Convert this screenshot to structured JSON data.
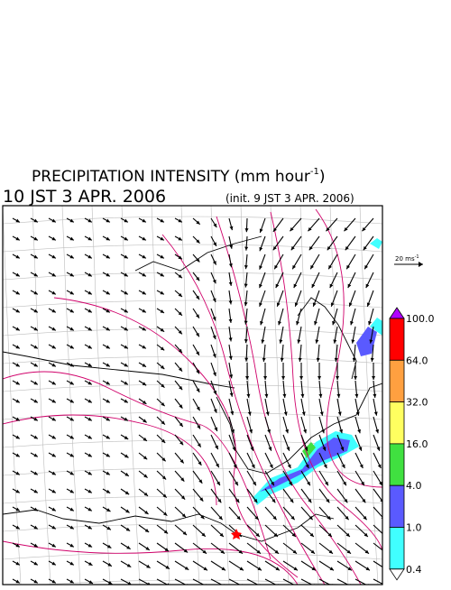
{
  "title": {
    "text": "PRECIPITATION INTENSITY (mm hour",
    "superscript": "-1",
    "suffix": ")"
  },
  "valid_time": "10 JST 3 APR. 2006",
  "init_time": "(init. 9 JST 3 APR. 2006)",
  "wind_scale": {
    "text": "20 ms",
    "superscript": "-1"
  },
  "legend": {
    "over_color": "#b000ff",
    "under_color": "#ffffff",
    "items": [
      {
        "label": "100.0",
        "color": "#ff0000"
      },
      {
        "label": "64.0",
        "color": "#ffa040"
      },
      {
        "label": "32.0",
        "color": "#ffff60"
      },
      {
        "label": "16.0",
        "color": "#40e040"
      },
      {
        "label": "4.0",
        "color": "#5a5aff"
      },
      {
        "label": "1.0",
        "color": "#40ffff"
      },
      {
        "label": "0.4",
        "color": null
      }
    ]
  }
}
